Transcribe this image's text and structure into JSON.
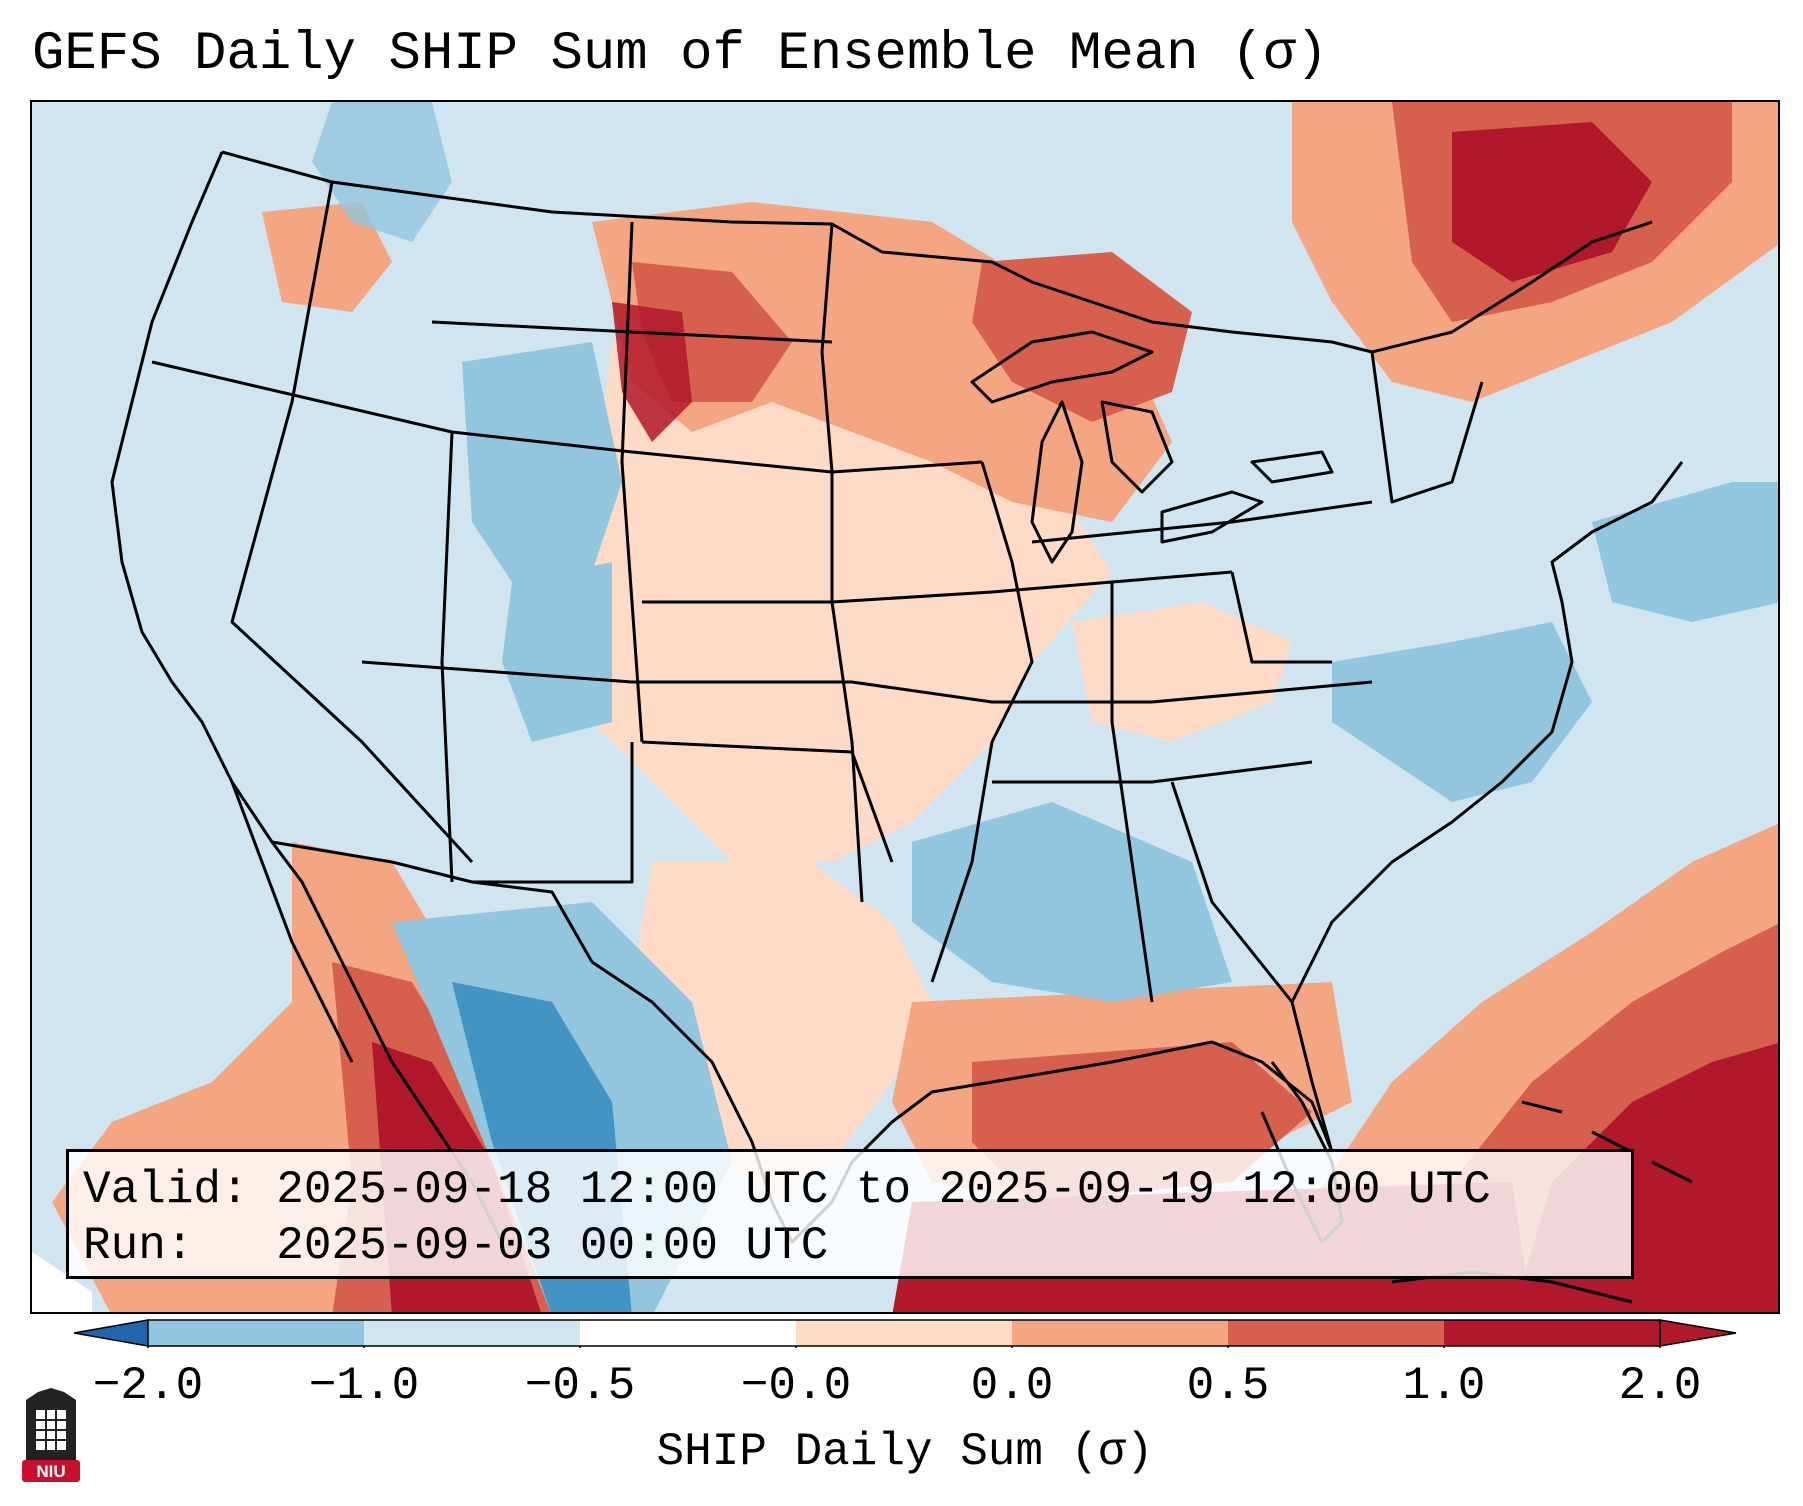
{
  "title": "GEFS Daily SHIP Sum of Ensemble Mean (σ)",
  "info": {
    "valid_label": "Valid:",
    "valid_value": "2025-09-18 12:00 UTC to 2025-09-19 12:00 UTC",
    "run_label": "Run:",
    "run_value": "2025-09-03 00:00 UTC"
  },
  "colorbar": {
    "label": "SHIP Daily Sum (σ)",
    "ticks": [
      "−2.0",
      "−1.0",
      "−0.5",
      "−0.0",
      "0.0",
      "0.5",
      "1.0",
      "2.0"
    ],
    "colors": [
      "#4393c3",
      "#92c5de",
      "#d1e5f0",
      "#ffffff",
      "#fddbc7",
      "#f4a582",
      "#d6604d",
      "#b2182b"
    ],
    "under_color": "#2166ac",
    "over_color": "#b2182b"
  },
  "logo": {
    "text": "NIU"
  }
}
